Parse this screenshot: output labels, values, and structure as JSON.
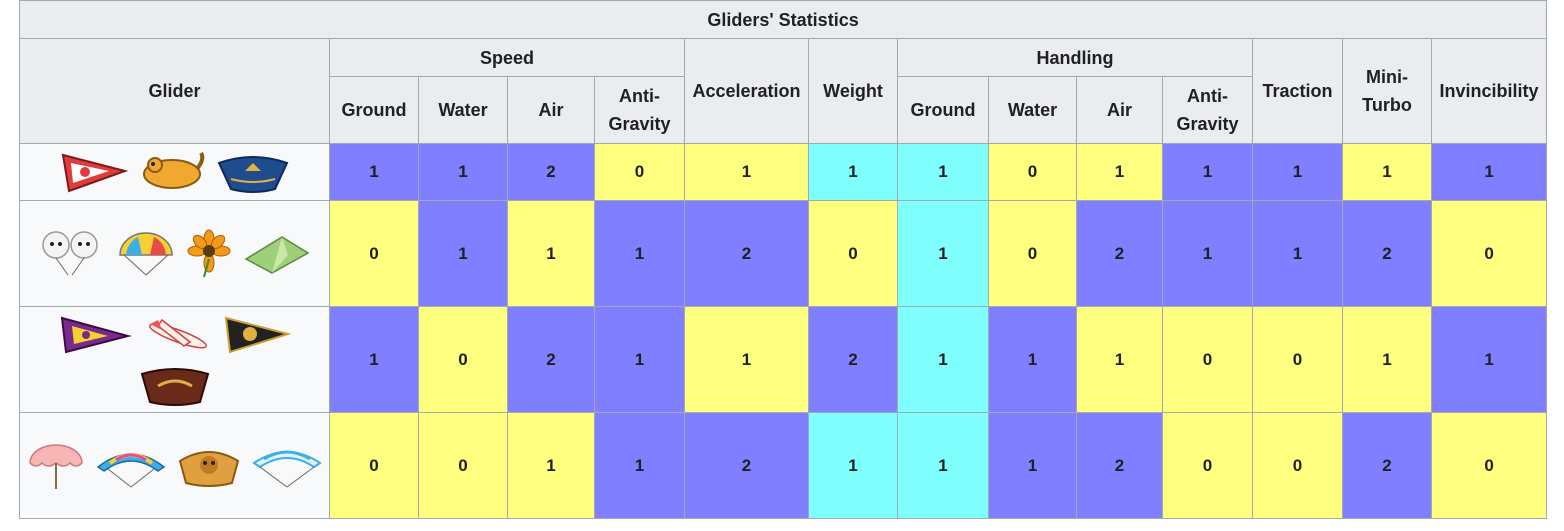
{
  "caption": "Gliders' Statistics",
  "headers": {
    "glider": "Glider",
    "speed": "Speed",
    "acceleration": "Acceleration",
    "weight": "Weight",
    "handling": "Handling",
    "traction": "Traction",
    "mini_turbo": "Mini-\nTurbo",
    "invincibility": "Invincibility",
    "speed_sub": [
      "Ground",
      "Water",
      "Air",
      "Anti-\nGravity"
    ],
    "handling_sub": [
      "Ground",
      "Water",
      "Air",
      "Anti-\nGravity"
    ]
  },
  "colors": {
    "1": "#7f7fff",
    "0": "#ffff80",
    "2": "#7f7fff",
    "weight_hi": "#80ffff"
  },
  "rows": [
    {
      "icons": [
        "red-white-glider-icon",
        "flying-squirrel-glider-icon",
        "hylian-kite-glider-icon"
      ],
      "cells": [
        {
          "v": "1",
          "c": "blue"
        },
        {
          "v": "1",
          "c": "blue"
        },
        {
          "v": "2",
          "c": "blue"
        },
        {
          "v": "0",
          "c": "yellow"
        },
        {
          "v": "1",
          "c": "yellow"
        },
        {
          "v": "1",
          "c": "cyan"
        },
        {
          "v": "1",
          "c": "cyan"
        },
        {
          "v": "0",
          "c": "yellow"
        },
        {
          "v": "1",
          "c": "yellow"
        },
        {
          "v": "1",
          "c": "blue"
        },
        {
          "v": "1",
          "c": "blue"
        },
        {
          "v": "1",
          "c": "yellow"
        },
        {
          "v": "1",
          "c": "blue"
        }
      ]
    },
    {
      "icons": [
        "cloud-glider-icon",
        "parachute-glider-icon",
        "flower-glider-icon",
        "paper-glider-icon"
      ],
      "cells": [
        {
          "v": "0",
          "c": "yellow"
        },
        {
          "v": "1",
          "c": "blue"
        },
        {
          "v": "1",
          "c": "yellow"
        },
        {
          "v": "1",
          "c": "blue"
        },
        {
          "v": "2",
          "c": "blue"
        },
        {
          "v": "0",
          "c": "yellow"
        },
        {
          "v": "1",
          "c": "cyan"
        },
        {
          "v": "0",
          "c": "yellow"
        },
        {
          "v": "2",
          "c": "blue"
        },
        {
          "v": "1",
          "c": "blue"
        },
        {
          "v": "1",
          "c": "blue"
        },
        {
          "v": "2",
          "c": "blue"
        },
        {
          "v": "0",
          "c": "yellow"
        }
      ]
    },
    {
      "icons": [
        "wario-wing-glider-icon",
        "plane-glider-icon",
        "gold-glider-icon",
        "bowser-kite-glider-icon"
      ],
      "cells": [
        {
          "v": "1",
          "c": "blue"
        },
        {
          "v": "0",
          "c": "yellow"
        },
        {
          "v": "2",
          "c": "blue"
        },
        {
          "v": "1",
          "c": "blue"
        },
        {
          "v": "1",
          "c": "yellow"
        },
        {
          "v": "2",
          "c": "blue"
        },
        {
          "v": "1",
          "c": "cyan"
        },
        {
          "v": "1",
          "c": "blue"
        },
        {
          "v": "1",
          "c": "yellow"
        },
        {
          "v": "0",
          "c": "yellow"
        },
        {
          "v": "0",
          "c": "yellow"
        },
        {
          "v": "1",
          "c": "yellow"
        },
        {
          "v": "1",
          "c": "blue"
        }
      ]
    },
    {
      "icons": [
        "parasol-glider-icon",
        "swoop-glider-icon",
        "mktv-parafoil-glider-icon",
        "paraglider-glider-icon"
      ],
      "cells": [
        {
          "v": "0",
          "c": "yellow"
        },
        {
          "v": "0",
          "c": "yellow"
        },
        {
          "v": "1",
          "c": "yellow"
        },
        {
          "v": "1",
          "c": "blue"
        },
        {
          "v": "2",
          "c": "blue"
        },
        {
          "v": "1",
          "c": "cyan"
        },
        {
          "v": "1",
          "c": "cyan"
        },
        {
          "v": "1",
          "c": "blue"
        },
        {
          "v": "2",
          "c": "blue"
        },
        {
          "v": "0",
          "c": "yellow"
        },
        {
          "v": "0",
          "c": "yellow"
        },
        {
          "v": "2",
          "c": "blue"
        },
        {
          "v": "0",
          "c": "yellow"
        }
      ]
    }
  ]
}
